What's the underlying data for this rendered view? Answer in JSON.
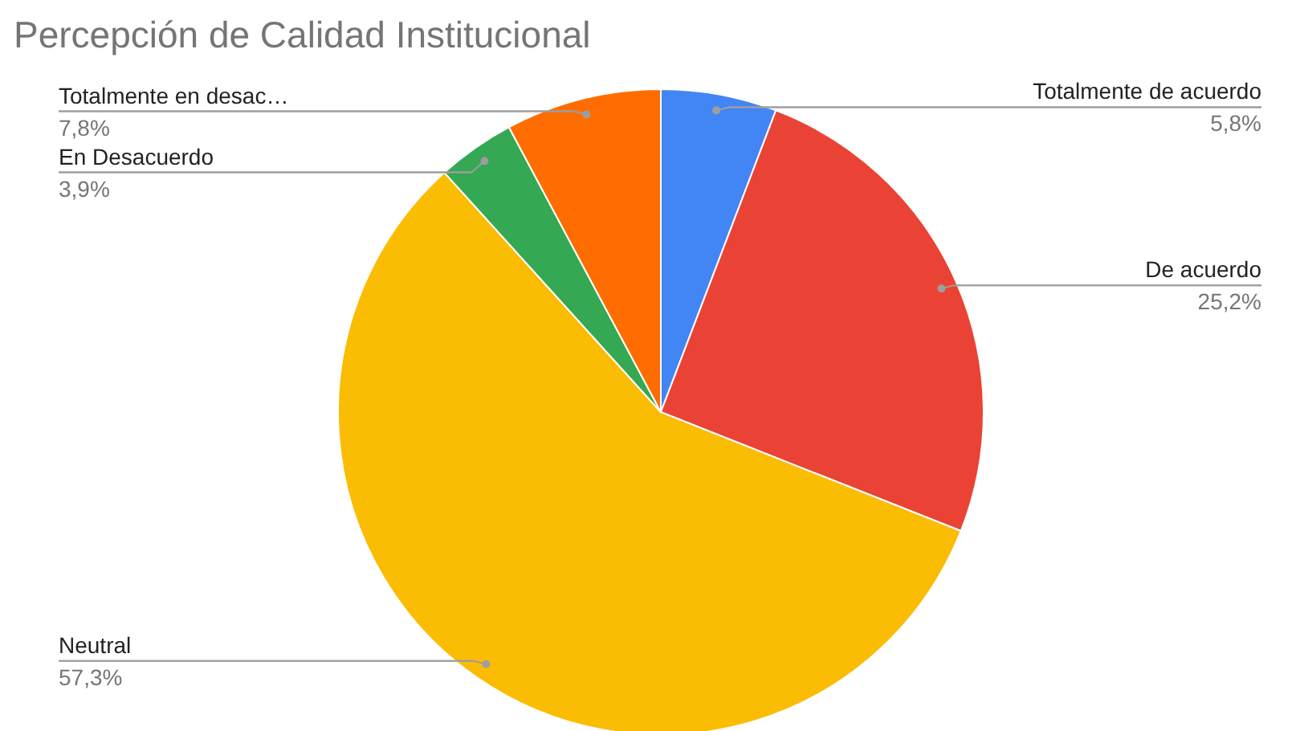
{
  "chart_data": {
    "type": "pie",
    "title": "Percepción de Calidad Institucional",
    "categories": [
      "Totalmente de acuerdo",
      "De acuerdo",
      "Neutral",
      "En Desacuerdo",
      "Totalmente en desac…"
    ],
    "values": [
      5.8,
      25.2,
      57.3,
      3.9,
      7.8
    ],
    "value_labels": [
      "5,8%",
      "25,2%",
      "57,3%",
      "3,9%",
      "7,8%"
    ],
    "colors": [
      "#4285f4",
      "#ea4335",
      "#fbbc04",
      "#34a853",
      "#ff6d01"
    ]
  }
}
